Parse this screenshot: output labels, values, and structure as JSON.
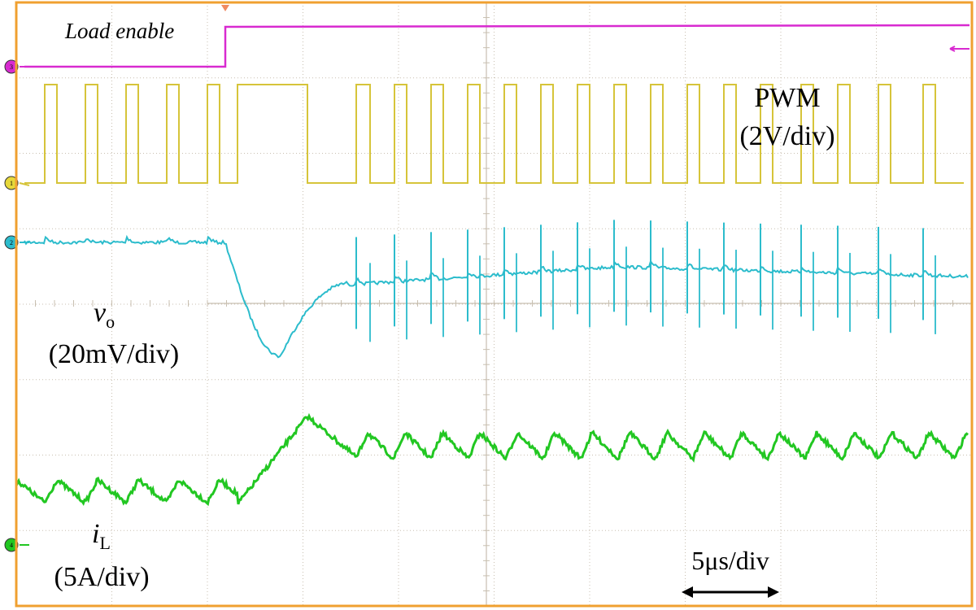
{
  "chart_data": {
    "type": "line",
    "title": "",
    "colors": {
      "frame": "#f0a030",
      "grid": "#c8bfb0",
      "load_enable": "#d82ad0",
      "pwm": "#d6c43a",
      "vo": "#2cbccc",
      "iL": "#22c722"
    },
    "channels": [
      {
        "id": "3",
        "name": "Load enable",
        "marker_color": "#d82ad0"
      },
      {
        "id": "1",
        "name": "PWM",
        "marker_color": "#e6d83a"
      },
      {
        "id": "2",
        "name": "vo",
        "marker_color": "#2cbccc"
      },
      {
        "id": "4",
        "name": "iL",
        "marker_color": "#22c722"
      }
    ],
    "labels": {
      "load_enable": "Load enable",
      "pwm": "PWM",
      "pwm_scale": "(2V/div)",
      "vo_main": "v",
      "vo_sub": "o",
      "vo_scale": "(20mV/div)",
      "il_main": "i",
      "il_sub": "L",
      "il_scale": "(5A/div)",
      "time_scale": "5μs/div"
    },
    "time_per_div_us": 5,
    "load_step_time_us": 12.5
  }
}
